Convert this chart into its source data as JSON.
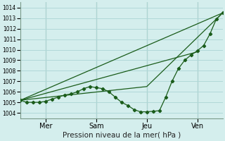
{
  "xlabel": "Pression niveau de la mer( hPa )",
  "bg_color": "#d4eeed",
  "grid_color": "#b0d8d8",
  "line_color": "#1a5c1a",
  "vline_color": "#5a7a6a",
  "ylim": [
    1003.5,
    1014.5
  ],
  "yticks": [
    1004,
    1005,
    1006,
    1007,
    1008,
    1009,
    1010,
    1011,
    1012,
    1013,
    1014
  ],
  "xlim": [
    0,
    96
  ],
  "day_positions": [
    12,
    36,
    60,
    84
  ],
  "day_labels": [
    "Mer",
    "Sam",
    "Jeu",
    "Ven"
  ],
  "series_detail_x": [
    0,
    3,
    6,
    9,
    12,
    15,
    18,
    21,
    24,
    27,
    30,
    33,
    36,
    39,
    42,
    45,
    48,
    51,
    54,
    57,
    60,
    63,
    66,
    69,
    72,
    75,
    78,
    81,
    84,
    87,
    90,
    93,
    96
  ],
  "series_detail_y": [
    1005.2,
    1005.0,
    1005.0,
    1005.0,
    1005.1,
    1005.3,
    1005.5,
    1005.7,
    1005.8,
    1006.0,
    1006.3,
    1006.5,
    1006.4,
    1006.3,
    1006.0,
    1005.5,
    1005.0,
    1004.7,
    1004.3,
    1004.1,
    1004.1,
    1004.15,
    1004.2,
    1005.5,
    1007.0,
    1008.2,
    1009.0,
    1009.5,
    1009.9,
    1010.4,
    1011.5,
    1012.9,
    1013.5
  ],
  "series_line1_x": [
    0,
    96
  ],
  "series_line1_y": [
    1005.2,
    1013.5
  ],
  "series_line2_x": [
    0,
    84
  ],
  "series_line2_y": [
    1005.2,
    1009.8
  ],
  "series_line3_x": [
    0,
    60,
    96
  ],
  "series_line3_y": [
    1005.2,
    1006.5,
    1013.5
  ]
}
